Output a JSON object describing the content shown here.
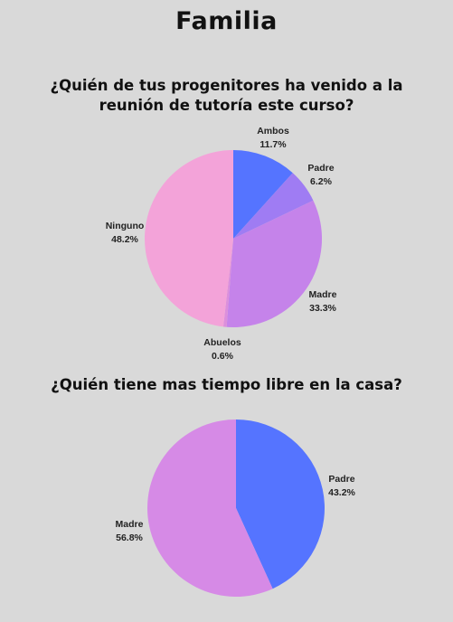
{
  "page": {
    "title": "Familia"
  },
  "chart_data": [
    {
      "type": "pie",
      "title": "¿Quién de tus progenitores ha venido a la reunión de tutoría este curso?",
      "slices": [
        {
          "label": "Ambos",
          "display": "11.7%",
          "value": 11.7,
          "color": "#5574ff"
        },
        {
          "label": "Padre",
          "display": "6.2%",
          "value": 6.2,
          "color": "#9f7cf3"
        },
        {
          "label": "Madre",
          "display": "33.3%",
          "value": 33.3,
          "color": "#c583ea"
        },
        {
          "label": "Abuelos",
          "display": "0.6%",
          "value": 0.6,
          "color": "#dc8fdc"
        },
        {
          "label": "Ninguno",
          "display": "48.2%",
          "value": 48.2,
          "color": "#f3a3d9"
        }
      ]
    },
    {
      "type": "pie",
      "title": "¿Quién tiene mas tiempo libre en la casa?",
      "slices": [
        {
          "label": "Padre",
          "display": "43.2%",
          "value": 43.2,
          "color": "#5574ff"
        },
        {
          "label": "Madre",
          "display": "56.8%",
          "value": 56.8,
          "color": "#d68ae6"
        }
      ]
    }
  ]
}
